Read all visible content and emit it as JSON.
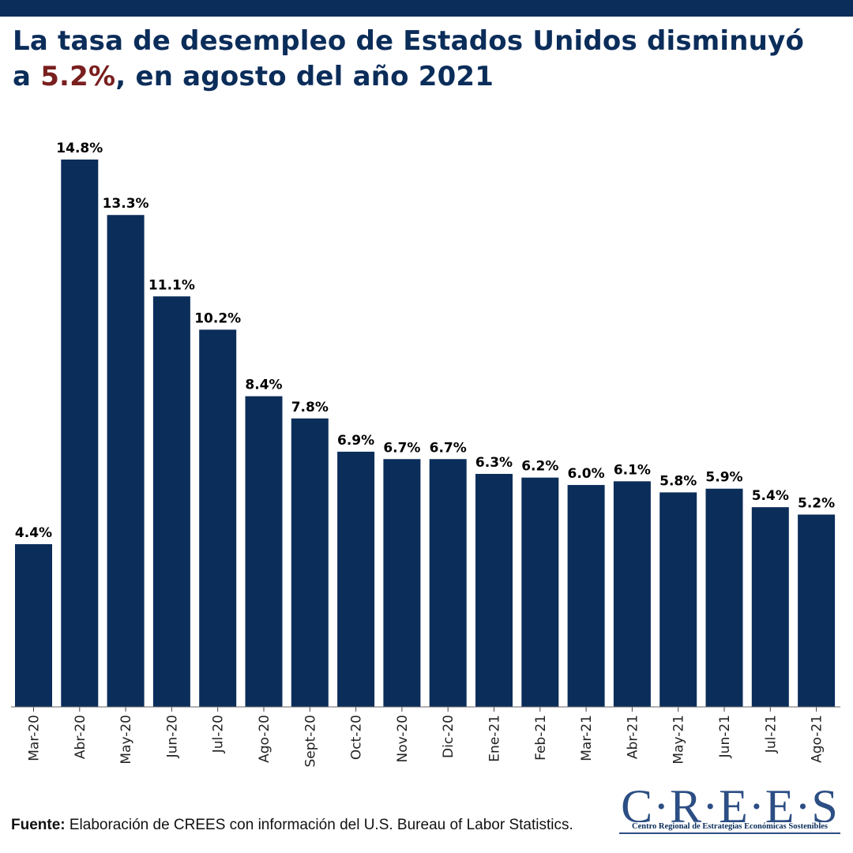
{
  "title": {
    "line1": "La tasa de desempleo de Estados Unidos disminuyó",
    "line2_prefix": "a ",
    "line2_highlight": "5.2%",
    "line2_suffix": ", en agosto del año 2021"
  },
  "colors": {
    "bar": "#0b2d5a",
    "title": "#0b2d5a",
    "highlight": "#7a1f1f",
    "label": "#000000"
  },
  "chart_data": {
    "type": "bar",
    "title": "La tasa de desempleo de Estados Unidos disminuyó a 5.2%, en agosto del año 2021",
    "categories": [
      "Mar-20",
      "Abr-20",
      "May-20",
      "Jun-20",
      "Jul-20",
      "Ago-20",
      "Sept-20",
      "Oct-20",
      "Nov-20",
      "Dic-20",
      "Ene-21",
      "Feb-21",
      "Mar-21",
      "Abr-21",
      "May-21",
      "Jun-21",
      "Jul-21",
      "Ago-21"
    ],
    "values": [
      4.4,
      14.8,
      13.3,
      11.1,
      10.2,
      8.4,
      7.8,
      6.9,
      6.7,
      6.7,
      6.3,
      6.2,
      6.0,
      6.1,
      5.8,
      5.9,
      5.4,
      5.2
    ],
    "value_labels": [
      "4.4%",
      "14.8%",
      "13.3%",
      "11.1%",
      "10.2%",
      "8.4%",
      "7.8%",
      "6.9%",
      "6.7%",
      "6.7%",
      "6.3%",
      "6.2%",
      "6.0%",
      "6.1%",
      "5.8%",
      "5.9%",
      "5.4%",
      "5.2%"
    ],
    "ylim": [
      0,
      14.8
    ],
    "grid": false,
    "y_axis_visible": false,
    "xlabel": "",
    "ylabel": ""
  },
  "footer": {
    "source_label": "Fuente:",
    "source_text": " Elaboración de CREES con información del U.S. Bureau of Labor Statistics."
  },
  "logo": {
    "wordmark": "C·R·E·E·S",
    "subtitle": "Centro Regional de Estrategias Económicas Sostenibles"
  }
}
